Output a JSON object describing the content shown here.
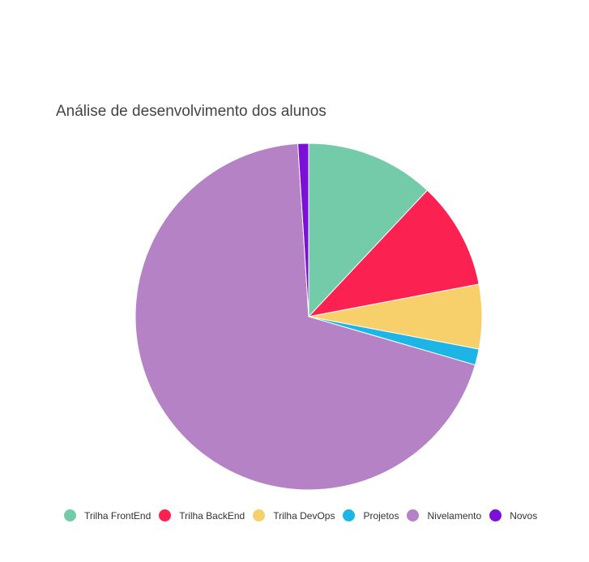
{
  "chart_data": {
    "type": "pie",
    "title": "Análise de desenvolvimento dos alunos",
    "series": [
      {
        "name": "Trilha FrontEnd",
        "value": 12,
        "color": "#74cbaa"
      },
      {
        "name": "Trilha BackEnd",
        "value": 10,
        "color": "#fb2151"
      },
      {
        "name": "Trilha DevOps",
        "value": 6,
        "color": "#f7d06c"
      },
      {
        "name": "Projetos",
        "value": 1.5,
        "color": "#1db5e5"
      },
      {
        "name": "Nivelamento",
        "value": 69.5,
        "color": "#b582c5"
      },
      {
        "name": "Novos",
        "value": 1,
        "color": "#7d10d7"
      }
    ],
    "legend_position": "bottom"
  }
}
